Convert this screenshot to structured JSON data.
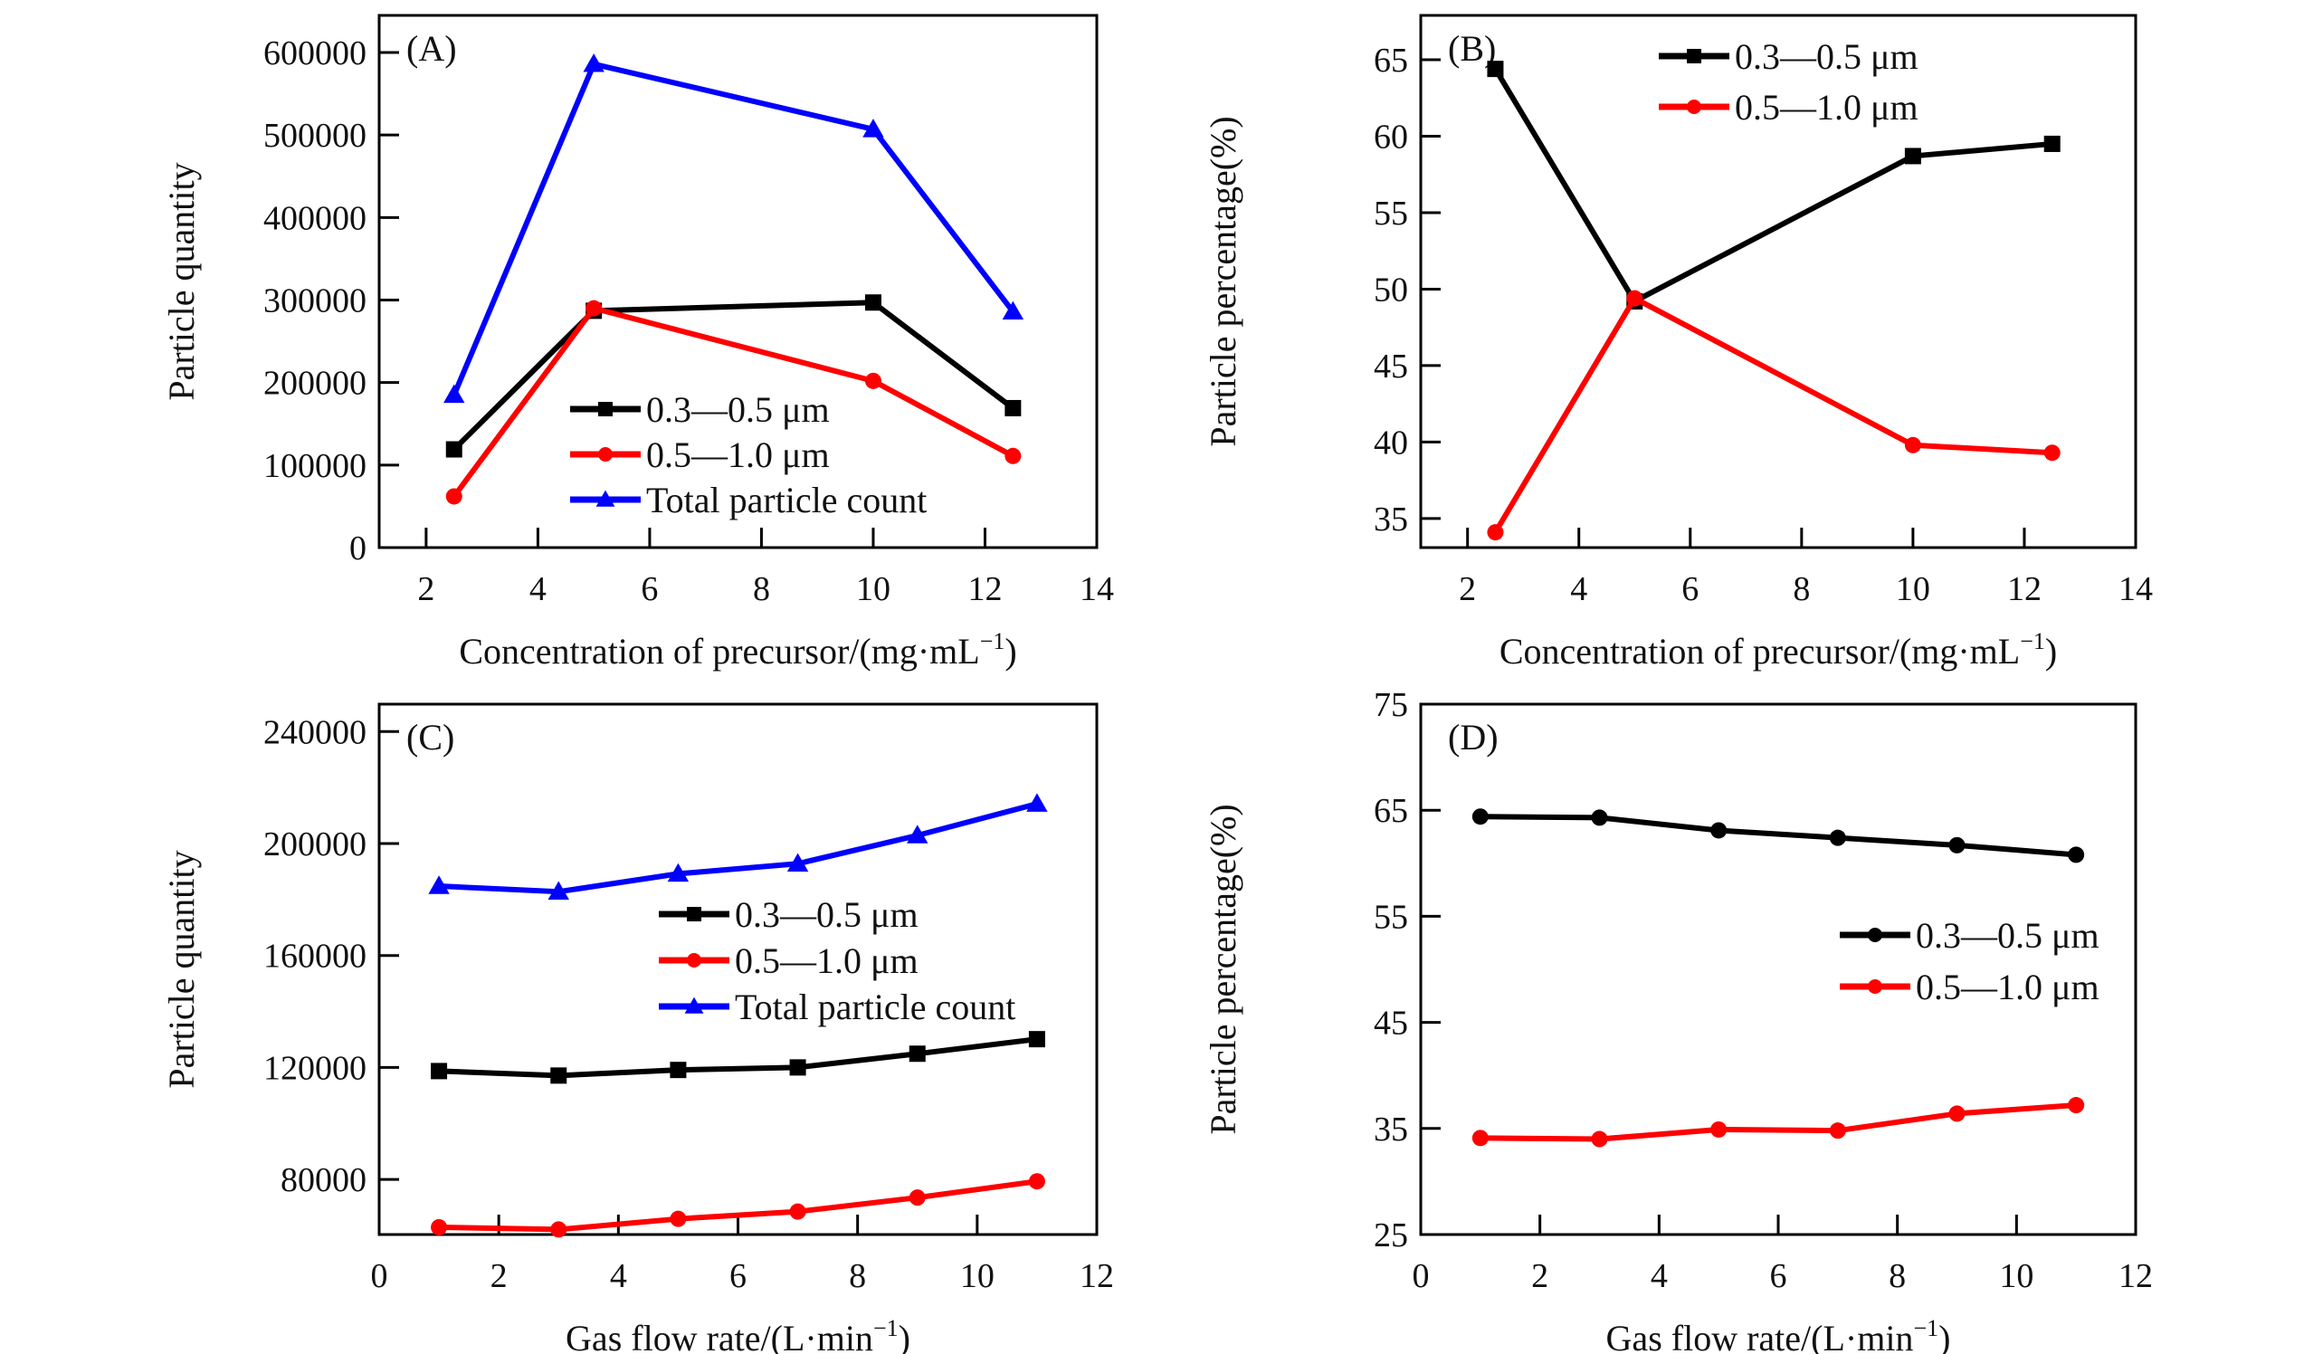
{
  "colors": {
    "black_series": "#000000",
    "red_series": "#ff0000",
    "blue_series": "#0000ff"
  },
  "chart_data": [
    {
      "id": "A",
      "type": "line",
      "panel_label": "(A)",
      "title": "",
      "xlabel": "Concentration of precursor/(mg·mL",
      "xlabel_sup": "−1",
      "xlabel_end": ")",
      "ylabel": "Particle quantity",
      "xlim": [
        1.16,
        14
      ],
      "ylim": [
        0,
        645000
      ],
      "xticks": [
        2,
        4,
        6,
        8,
        10,
        12,
        14
      ],
      "yticks": [
        0,
        100000,
        200000,
        300000,
        400000,
        500000,
        600000
      ],
      "ytick_labels": [
        "0",
        "100000",
        "200000",
        "300000",
        "400000",
        "500000",
        "600000"
      ],
      "legend_position": "bottom-center",
      "grid": false,
      "x": [
        2.5,
        5,
        10,
        12.5
      ],
      "series": [
        {
          "name": "0.3—0.5 μm",
          "marker": "square",
          "color": "#000000",
          "values": [
            119000,
            287000,
            297000,
            169000
          ]
        },
        {
          "name": "0.5—1.0 μm",
          "marker": "circle",
          "color": "#ff0000",
          "values": [
            62000,
            290000,
            202000,
            111000
          ]
        },
        {
          "name": "Total particle count",
          "marker": "triangle",
          "color": "#0000ff",
          "values": [
            185000,
            586000,
            507000,
            286000
          ]
        }
      ]
    },
    {
      "id": "B",
      "type": "line",
      "panel_label": "(B)",
      "title": "",
      "xlabel": "Concentration of precursor/(mg·mL",
      "xlabel_sup": "−1",
      "xlabel_end": ")",
      "ylabel": "Particle percentage(%)",
      "xlim": [
        1.16,
        14
      ],
      "ylim": [
        33.1,
        67.9
      ],
      "xticks": [
        2,
        4,
        6,
        8,
        10,
        12,
        14
      ],
      "yticks": [
        35,
        40,
        45,
        50,
        55,
        60,
        65
      ],
      "ytick_labels": [
        "35",
        "40",
        "45",
        "50",
        "55",
        "60",
        "65"
      ],
      "legend_position": "top-center",
      "grid": false,
      "x": [
        2.5,
        5,
        10,
        12.5
      ],
      "series": [
        {
          "name": "0.3—0.5 μm",
          "marker": "square",
          "color": "#000000",
          "values": [
            64.4,
            49.2,
            58.7,
            59.5
          ]
        },
        {
          "name": "0.5—1.0 μm",
          "marker": "circle",
          "color": "#ff0000",
          "values": [
            34.1,
            49.4,
            39.8,
            39.3
          ]
        }
      ]
    },
    {
      "id": "C",
      "type": "line",
      "panel_label": "(C)",
      "title": "",
      "xlabel": "Gas flow rate/(L·min",
      "xlabel_sup": "−1",
      "xlabel_end": ")",
      "ylabel": "Particle quantity",
      "xlim": [
        0,
        12
      ],
      "ylim": [
        60300,
        249800
      ],
      "xticks": [
        0,
        2,
        4,
        6,
        8,
        10,
        12
      ],
      "yticks": [
        80000,
        120000,
        160000,
        200000,
        240000
      ],
      "ytick_labels": [
        "80000",
        "120000",
        "160000",
        "200000",
        "240000"
      ],
      "legend_position": "center-right",
      "grid": false,
      "x": [
        1,
        3,
        5,
        7,
        9,
        11
      ],
      "series": [
        {
          "name": "0.3—0.5 μm",
          "marker": "square",
          "color": "#000000",
          "values": [
            118700,
            117100,
            119100,
            120000,
            124900,
            130100
          ]
        },
        {
          "name": "0.5—1.0 μm",
          "marker": "circle",
          "color": "#ff0000",
          "values": [
            62900,
            62100,
            65900,
            68500,
            73500,
            79300
          ]
        },
        {
          "name": "Total particle count",
          "marker": "triangle",
          "color": "#0000ff",
          "values": [
            184800,
            182800,
            189200,
            192800,
            202900,
            214200
          ]
        }
      ]
    },
    {
      "id": "D",
      "type": "line",
      "panel_label": "(D)",
      "title": "",
      "xlabel": "Gas flow rate/(L·min",
      "xlabel_sup": "−1",
      "xlabel_end": ")",
      "ylabel": "Particle percentage(%)",
      "xlim": [
        0,
        12
      ],
      "ylim": [
        25,
        75
      ],
      "xticks": [
        0,
        2,
        4,
        6,
        8,
        10,
        12
      ],
      "yticks": [
        25,
        35,
        45,
        55,
        65,
        75
      ],
      "ytick_labels": [
        "25",
        "35",
        "45",
        "55",
        "65",
        "75"
      ],
      "legend_position": "center-right",
      "grid": false,
      "x": [
        1,
        3,
        5,
        7,
        9,
        11
      ],
      "series": [
        {
          "name": "0.3—0.5 μm",
          "marker": "circle",
          "color": "#000000",
          "values": [
            64.4,
            64.3,
            63.1,
            62.4,
            61.7,
            60.8
          ]
        },
        {
          "name": "0.5—1.0 μm",
          "marker": "circle",
          "color": "#ff0000",
          "values": [
            34.1,
            34.0,
            34.9,
            34.8,
            36.4,
            37.2
          ]
        }
      ]
    }
  ]
}
